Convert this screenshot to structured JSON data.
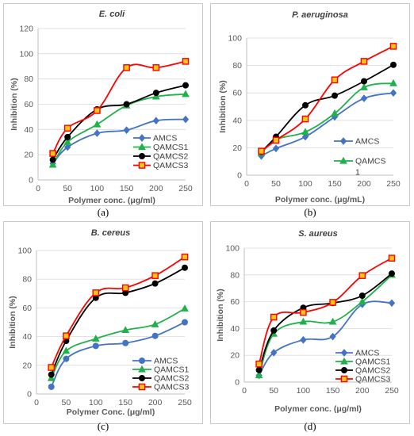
{
  "colors": {
    "AMCS": "#4472c4",
    "QAMCS1": "#21b14b",
    "QAMCS2": "#000000",
    "QAMCS3": "#ff0000",
    "QAMCS3_fill": "#f5c518"
  },
  "chart_data": [
    {
      "type": "line",
      "panel_label": "(a)",
      "title": "E. coli",
      "xlabel": "Polymer conc. (μg/ml)",
      "ylabel": "Inhibition (%)",
      "xlim": [
        0,
        250
      ],
      "ylim": [
        0,
        120
      ],
      "xticks": [
        "0",
        "50",
        "100",
        "150",
        "200",
        "250"
      ],
      "yticks": [
        "0",
        "20",
        "40",
        "60",
        "80",
        "100",
        "120"
      ],
      "legend_position": "lower-right",
      "error_bars": true,
      "x": [
        25,
        50,
        100,
        150,
        200,
        250
      ],
      "series": [
        {
          "name": "AMCS",
          "marker": "diamond",
          "values": [
            13,
            26,
            37,
            39.5,
            47,
            48
          ]
        },
        {
          "name": "QAMCS1",
          "marker": "triangle",
          "values": [
            12,
            30,
            44,
            59,
            66,
            68
          ]
        },
        {
          "name": "QAMCS2",
          "marker": "circle",
          "values": [
            16,
            34,
            56,
            60,
            69,
            75
          ]
        },
        {
          "name": "QAMCS3",
          "marker": "square",
          "values": [
            21,
            41,
            55,
            89,
            89,
            94
          ]
        }
      ]
    },
    {
      "type": "line",
      "panel_label": "(b)",
      "title": "P. aeruginosa",
      "xlabel": "Polymer conc. (μg/mL)",
      "ylabel": "Inhibition (%)",
      "xlim": [
        0,
        250
      ],
      "ylim": [
        0,
        100
      ],
      "xticks": [
        "0",
        "50",
        "100",
        "150",
        "200",
        "250"
      ],
      "yticks": [
        "0",
        "20",
        "40",
        "60",
        "80",
        "100"
      ],
      "legend_position": "lower-right",
      "error_bars": false,
      "x": [
        25,
        50,
        100,
        150,
        200,
        250
      ],
      "series": [
        {
          "name": "AMCS",
          "marker": "diamond",
          "values": [
            14,
            19.5,
            28,
            42.5,
            56,
            60
          ]
        },
        {
          "name": "QAMCS\n1",
          "marker": "triangle",
          "values": [
            16,
            26,
            31.5,
            45,
            64,
            67
          ]
        },
        {
          "name": "",
          "marker": "circle",
          "values": [
            17,
            28,
            51,
            58,
            68.5,
            80.5
          ]
        },
        {
          "name": "",
          "marker": "square",
          "values": [
            17.5,
            25.5,
            41,
            69.5,
            83,
            94
          ]
        }
      ]
    },
    {
      "type": "line",
      "panel_label": "(c)",
      "title": "B. cereus",
      "xlabel": "Polymer Conc. (μg/ml)",
      "ylabel": "Inhibition (%)",
      "xlim": [
        0,
        250
      ],
      "ylim": [
        0,
        100
      ],
      "xticks": [
        "0",
        "50",
        "100",
        "150",
        "200",
        "250"
      ],
      "yticks": [
        "0",
        "20",
        "40",
        "60",
        "80",
        "100"
      ],
      "legend_position": "lower-right",
      "error_bars": false,
      "x": [
        25,
        50,
        100,
        150,
        200,
        250
      ],
      "series": [
        {
          "name": "AMCS",
          "marker": "circle",
          "values": [
            5,
            24.5,
            33.5,
            35.5,
            40.5,
            50
          ]
        },
        {
          "name": "QAMCS1",
          "marker": "triangle",
          "values": [
            11,
            30,
            38.5,
            44.5,
            48.5,
            59.5
          ]
        },
        {
          "name": "QAMCS2",
          "marker": "circle",
          "values": [
            13.5,
            37,
            67,
            70.5,
            77,
            88
          ]
        },
        {
          "name": "QAMCS3",
          "marker": "square",
          "values": [
            18.5,
            40.5,
            70.5,
            74,
            82.5,
            95.5
          ]
        }
      ]
    },
    {
      "type": "line",
      "panel_label": "(d)",
      "title": "S. aureus",
      "xlabel": "Polymer conc. (μg/ml)",
      "ylabel": "Inhibition (%)",
      "xlim": [
        0,
        250
      ],
      "ylim": [
        0,
        100
      ],
      "xticks": [
        "0",
        "50",
        "100",
        "150",
        "200",
        "250"
      ],
      "yticks": [
        "0",
        "20",
        "40",
        "60",
        "80",
        "100"
      ],
      "legend_position": "lower-right",
      "error_bars": false,
      "x": [
        25,
        50,
        100,
        150,
        200,
        250
      ],
      "series": [
        {
          "name": "AMCS",
          "marker": "diamond",
          "values": [
            5,
            22,
            31.5,
            34,
            58,
            59
          ]
        },
        {
          "name": "QAMCS1",
          "marker": "triangle",
          "values": [
            5,
            36,
            45,
            45,
            60,
            80
          ]
        },
        {
          "name": "QAMCS2",
          "marker": "circle",
          "values": [
            9,
            38.5,
            55.5,
            59,
            64.5,
            81
          ]
        },
        {
          "name": "QAMCS3",
          "marker": "square",
          "values": [
            13.5,
            48.5,
            52,
            59.5,
            79.5,
            92.5
          ]
        }
      ]
    }
  ]
}
